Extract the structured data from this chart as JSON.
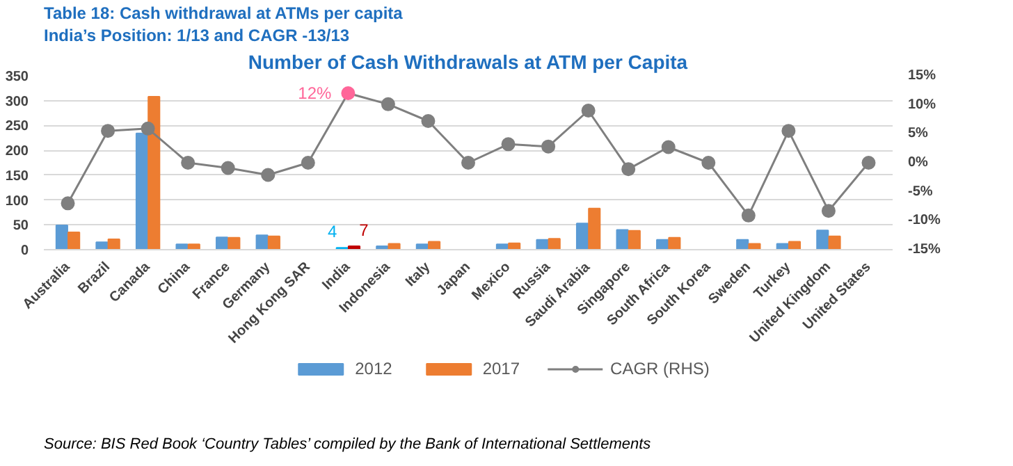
{
  "chart_data": {
    "type": "bar",
    "title": "Number of Cash Withdrawals at ATM per Capita",
    "annotations": [
      "Table 18: Cash withdrawal at ATMs per capita",
      "India’s Position: 1/13 and CAGR -13/13",
      "Source: BIS Red Book ‘Country Tables’ compiled by the Bank of International Settlements"
    ],
    "categories": [
      "Australia",
      "Brazil",
      "Canada",
      "China",
      "France",
      "Germany",
      "Hong Kong SAR",
      "India",
      "Indonesia",
      "Italy",
      "Japan",
      "Mexico",
      "Russia",
      "Saudi Arabia",
      "Singapore",
      "South Africa",
      "South Korea",
      "Sweden",
      "Turkey",
      "United Kingdom",
      "United States"
    ],
    "series": [
      {
        "name": "2012",
        "color": "#5b9bd5",
        "colors": [
          "#5b9bd5",
          "#5b9bd5",
          "#5b9bd5",
          "#5b9bd5",
          "#5b9bd5",
          "#5b9bd5",
          "#5b9bd5",
          "#00b0f0",
          "#5b9bd5",
          "#5b9bd5",
          "#5b9bd5",
          "#5b9bd5",
          "#5b9bd5",
          "#5b9bd5",
          "#5b9bd5",
          "#5b9bd5",
          "#5b9bd5",
          "#5b9bd5",
          "#5b9bd5",
          "#5b9bd5",
          "#5b9bd5"
        ],
        "values": [
          49,
          15,
          234,
          11,
          25,
          29,
          null,
          4,
          7,
          11,
          null,
          11,
          20,
          53,
          40,
          20,
          null,
          20,
          12,
          39,
          null
        ],
        "value_labels": [
          null,
          null,
          null,
          null,
          null,
          null,
          null,
          "4",
          null,
          null,
          null,
          null,
          null,
          null,
          null,
          null,
          null,
          null,
          null,
          null,
          null
        ]
      },
      {
        "name": "2017",
        "color": "#ed7d31",
        "colors": [
          "#ed7d31",
          "#ed7d31",
          "#ed7d31",
          "#ed7d31",
          "#ed7d31",
          "#ed7d31",
          "#ed7d31",
          "#c00000",
          "#ed7d31",
          "#ed7d31",
          "#ed7d31",
          "#ed7d31",
          "#ed7d31",
          "#ed7d31",
          "#ed7d31",
          "#ed7d31",
          "#ed7d31",
          "#ed7d31",
          "#ed7d31",
          "#ed7d31",
          "#ed7d31"
        ],
        "values": [
          35,
          21,
          308,
          11,
          24,
          27,
          null,
          7,
          12,
          16,
          null,
          13,
          22,
          83,
          38,
          24,
          null,
          12,
          16,
          27,
          null
        ],
        "value_labels": [
          null,
          null,
          null,
          null,
          null,
          null,
          null,
          "7",
          null,
          null,
          null,
          null,
          null,
          null,
          null,
          null,
          null,
          null,
          null,
          null,
          null
        ]
      },
      {
        "name": "CAGR (RHS)",
        "type": "line",
        "axis": "y2",
        "color": "#7f7f7f",
        "colors": [
          "#7f7f7f",
          "#7f7f7f",
          "#7f7f7f",
          "#7f7f7f",
          "#7f7f7f",
          "#7f7f7f",
          "#7f7f7f",
          "#ff6699",
          "#7f7f7f",
          "#7f7f7f",
          "#7f7f7f",
          "#7f7f7f",
          "#7f7f7f",
          "#7f7f7f",
          "#7f7f7f",
          "#7f7f7f",
          "#7f7f7f",
          "#7f7f7f",
          "#7f7f7f",
          "#7f7f7f",
          "#7f7f7f"
        ],
        "values": [
          -7,
          5.5,
          5.9,
          0,
          -0.9,
          -2.1,
          0,
          12,
          10.1,
          7.2,
          0,
          3.2,
          2.8,
          9.0,
          -1.1,
          2.7,
          0,
          -9.1,
          5.5,
          -8.3,
          0
        ],
        "value_labels": [
          null,
          null,
          null,
          null,
          null,
          null,
          null,
          "12%",
          null,
          null,
          null,
          null,
          null,
          null,
          null,
          null,
          null,
          null,
          null,
          null,
          null
        ]
      }
    ],
    "ylim": [
      0,
      350
    ],
    "yticks": [
      0,
      50,
      100,
      150,
      200,
      250,
      300,
      350
    ],
    "y2lim": [
      -15,
      15
    ],
    "y2ticks": [
      {
        "value": -15,
        "label": "-15%"
      },
      {
        "value": -10,
        "label": "-10%"
      },
      {
        "value": -5,
        "label": "-5%"
      },
      {
        "value": 0,
        "label": "0%"
      },
      {
        "value": 5,
        "label": "5%"
      },
      {
        "value": 10,
        "label": "10%"
      },
      {
        "value": 15,
        "label": "15%"
      }
    ],
    "grid": "y",
    "legend": "bottom",
    "marker": "circle",
    "line_style": "solid"
  }
}
